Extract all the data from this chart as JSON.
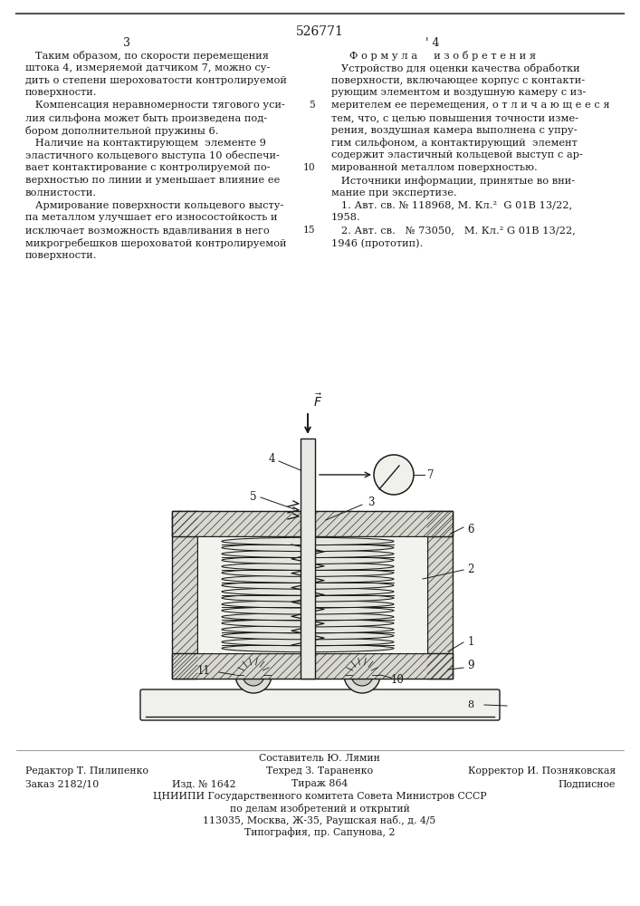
{
  "patent_number": "526771",
  "page_numbers": [
    "3",
    "4"
  ],
  "background_color": "#ffffff",
  "text_color": "#1a1a1a",
  "left_column_text": [
    "   Таким образом, по скорости перемещения",
    "штока 4, измеряемой датчиком 7, можно су-",
    "дить о степени шероховатости контролируемой",
    "поверхности.",
    "   Компенсация неравномерности тягового уси-",
    "лия сильфона может быть произведена под-",
    "бором дополнительной пружины 6.",
    "   Наличие на контактирующем  элементе 9",
    "эластичного кольцевого выступа 10 обеспечи-",
    "вает контактирование с контролируемой по-",
    "верхностью по линии и уменьшает влияние ее",
    "волнистости.",
    "   Армирование поверхности кольцевого высту-",
    "па металлом улучшает его износостойкость и",
    "исключает возможность вдавливания в него",
    "микрогребешков шероховатой контролируемой",
    "поверхности."
  ],
  "right_column_title": "Ф о р м у л а     и з о б р е т е н и я",
  "right_column_text": [
    "   Устройство для оценки качества обработки",
    "поверхности, включающее корпус с контакти-",
    "рующим элементом и воздушную камеру с из-",
    "мерителем ее перемещения, о т л и ч а ю щ е е с я",
    "тем, что, с целью повышения точности изме-",
    "рения, воздушная камера выполнена с упру-",
    "гим сильфоном, а контактирующий  элемент",
    "содержит эластичный кольцевой выступ с ар-",
    "мированной металлом поверхностью.",
    "   Источники информации, принятые во вни-",
    "мание при экспертизе.",
    "   1. Авт. св. № 118968, М. Кл.²  G 01В 13/22,",
    "1958.",
    "   2. Авт. св.   № 73050,   М. Кл.² G 01В 13/22,",
    "1946 (прототип)."
  ],
  "line_number_map": {
    "4": "5",
    "8": "10",
    "12": "15"
  },
  "bottom_texts": {
    "sostavitel": "Составитель Ю. Лямин",
    "redaktor": "Редактор Т. Пилипенко",
    "tehred": "Техред З. Тараненко",
    "korrektor": "Корректор И. Позняковская",
    "zakaz": "Заказ 2182/10",
    "izd": "Изд. № 1642",
    "tirazh": "Тираж 864",
    "podpisnoe": "Подписное",
    "tsniipi": "ЦНИИПИ Государственного комитета Совета Министров СССР",
    "dela": "по делам изобретений и открытий",
    "address": "113035, Москва, Ж-35, Раушская наб., д. 4/5",
    "tipografia": "Типография, пр. Сапунова, 2"
  }
}
